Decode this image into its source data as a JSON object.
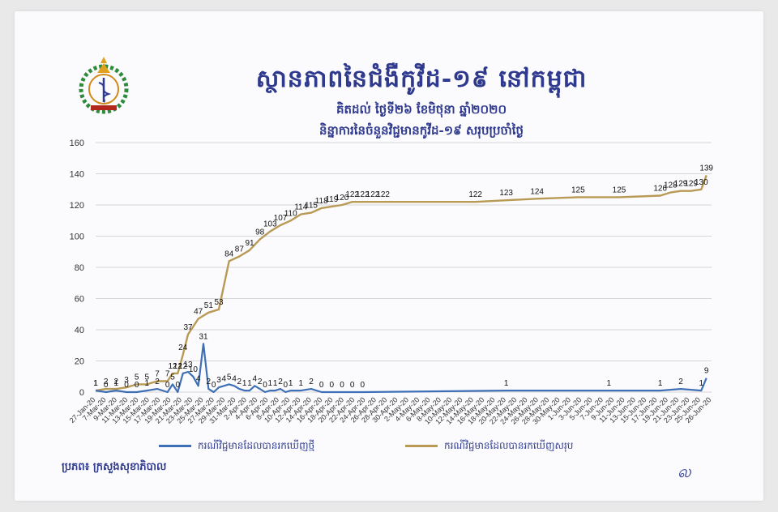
{
  "title": "ស្ថានភាពនៃជំងឺកូវីដ-១៩ នៅកម្ពុជា",
  "subtitle_date": "គិតដល់ ថ្ងៃទី២៦ ខែមិថុនា ឆ្នាំ២០២០",
  "subtitle_desc": "និន្នាការនៃចំនួនវិជ្ជមានកូវីដ-១៩ សរុបប្រចាំថ្ងៃ",
  "legend": {
    "new_cases": "ករណីវិជ្ជមានដែលបានរកឃើញថ្មី",
    "total_cases": "ករណីវិជ្ជមានដែលបានរកឃើញសរុប"
  },
  "source": "ប្រភព៖ ក្រសួងសុខាភិបាល",
  "signature": "ல",
  "colors": {
    "new_cases": "#3f6fb4",
    "total_cases": "#b99a55",
    "title": "#2f3a8f"
  },
  "chart_data": {
    "type": "line",
    "ylim": [
      0,
      160
    ],
    "yticks": [
      0,
      20,
      40,
      60,
      80,
      100,
      120,
      140,
      160
    ],
    "grid": true,
    "x_tick_labels": [
      "27-Jan-20",
      "7-Mar-20",
      "9-Mar-20",
      "11-Mar-20",
      "13-Mar-20",
      "15-Mar-20",
      "17-Mar-20",
      "19-Mar-20",
      "21-Mar-20",
      "23-Mar-20",
      "25-Mar-20",
      "27-Mar-20",
      "29-Mar-20",
      "31-Mar-20",
      "2-Apr-20",
      "4-Apr-20",
      "6-Apr-20",
      "8-Apr-20",
      "10-Apr-20",
      "12-Apr-20",
      "14-Apr-20",
      "16-Apr-20",
      "18-Apr-20",
      "20-Apr-20",
      "22-Apr-20",
      "24-Apr-20",
      "26-Apr-20",
      "28-Apr-20",
      "30-Apr-20",
      "2-May-20",
      "4-May-20",
      "6-May-20",
      "8-May-20",
      "10-May-20",
      "12-May-20",
      "14-May-20",
      "16-May-20",
      "18-May-20",
      "20-May-20",
      "22-May-20",
      "24-May-20",
      "26-May-20",
      "28-May-20",
      "30-May-20",
      "1-Jun-20",
      "3-Jun-20",
      "5-Jun-20",
      "7-Jun-20",
      "9-Jun-20",
      "11-Jun-20",
      "13-Jun-20",
      "15-Jun-20",
      "17-Jun-20",
      "19-Jun-20",
      "21-Jun-20",
      "23-Jun-20",
      "25-Jun-20",
      "26-Jun-20"
    ],
    "series": [
      {
        "name": "ករណីវិជ្ជមានដែលបានរកឃើញសរុប",
        "x_index": [
          0,
          2,
          4,
          6,
          8,
          10,
          12,
          14,
          15,
          16,
          17,
          18,
          20,
          22,
          24,
          26,
          28,
          30,
          32,
          34,
          36,
          38,
          40,
          42,
          44,
          46,
          48,
          50,
          52,
          54,
          56,
          74,
          80,
          86,
          94,
          102,
          110,
          112,
          114,
          116,
          118,
          119
        ],
        "values": [
          1,
          2,
          2,
          3,
          5,
          5,
          7,
          7,
          12,
          12,
          24,
          37,
          47,
          51,
          53,
          84,
          87,
          91,
          98,
          103,
          107,
          110,
          114,
          115,
          118,
          119,
          120,
          122,
          122,
          122,
          122,
          122,
          123,
          124,
          125,
          125,
          126,
          128,
          129,
          129,
          130,
          139
        ],
        "labels": [
          "1",
          "2",
          "2",
          "3",
          "5",
          "5",
          "7",
          "7",
          "12",
          "12",
          "24",
          "37",
          "47",
          "51",
          "53",
          "84",
          "87",
          "91",
          "98",
          "103",
          "107",
          "110",
          "114",
          "115",
          "118",
          "119",
          "120",
          "122",
          "122",
          "122",
          "122",
          "122",
          "123",
          "124",
          "125",
          "125",
          "126",
          "128",
          "129",
          "129",
          "130",
          "139"
        ]
      },
      {
        "name": "ករណីវិជ្ជមានដែលបានរកឃើញថ្មី",
        "x_index": [
          0,
          2,
          4,
          6,
          8,
          10,
          12,
          14,
          15,
          16,
          17,
          18,
          19,
          20,
          21,
          22,
          23,
          24,
          25,
          26,
          27,
          28,
          29,
          30,
          31,
          32,
          33,
          34,
          35,
          36,
          37,
          38,
          40,
          42,
          44,
          46,
          48,
          50,
          52,
          80,
          100,
          110,
          114,
          118,
          119
        ],
        "values": [
          1,
          0,
          1,
          0,
          0,
          1,
          2,
          0,
          5,
          0,
          12,
          13,
          10,
          4,
          31,
          2,
          0,
          3,
          4,
          5,
          4,
          2,
          1,
          1,
          4,
          2,
          0,
          1,
          1,
          2,
          0,
          1,
          1,
          2,
          0,
          0,
          0,
          0,
          0,
          1,
          1,
          1,
          2,
          1,
          9
        ],
        "labels": [
          "1",
          "0",
          "1",
          "0",
          "0",
          "1",
          "2",
          "0",
          "5",
          "0",
          "12",
          "13",
          "10",
          "4",
          "31",
          "2",
          "0",
          "3",
          "4",
          "5",
          "4",
          "2",
          "1",
          "1",
          "4",
          "2",
          "0",
          "1",
          "1",
          "2",
          "0",
          "1",
          "1",
          "2",
          "0",
          "0",
          "0",
          "0",
          "0",
          "1",
          "1",
          "1",
          "2",
          "1",
          "9"
        ]
      }
    ]
  }
}
